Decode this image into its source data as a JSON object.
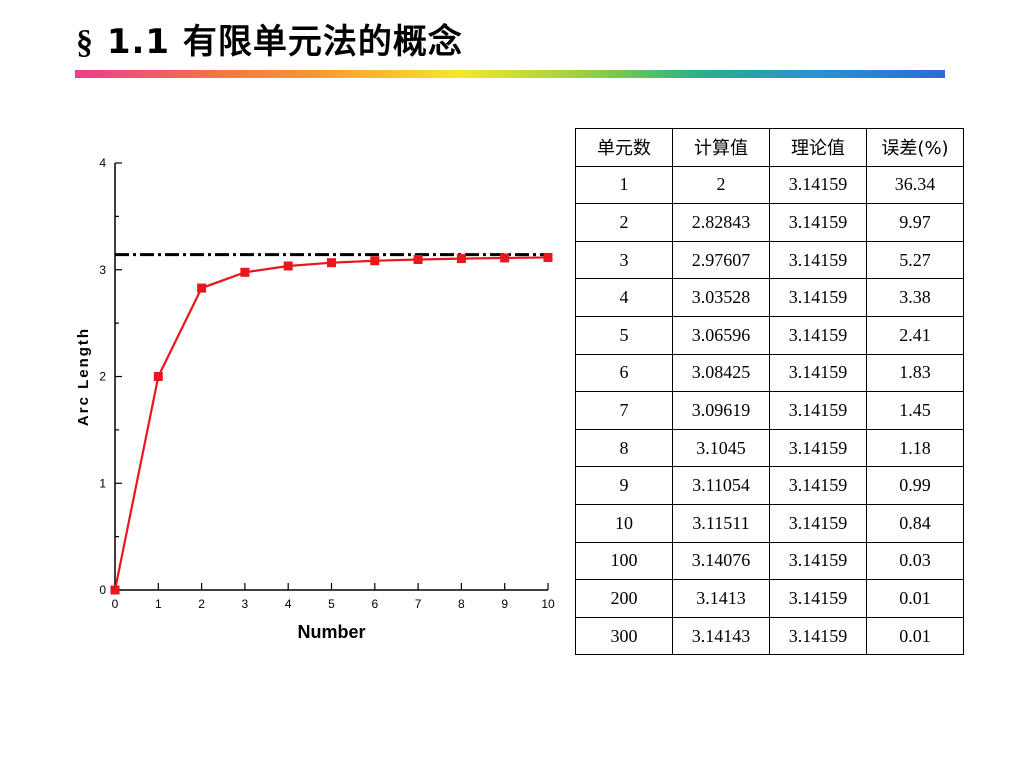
{
  "title": {
    "prefix": "§",
    "text": "1.1 有限单元法的概念"
  },
  "chart_data": {
    "type": "line",
    "xlabel": "Number",
    "ylabel": "Arc Length",
    "xlim": [
      0,
      10
    ],
    "ylim": [
      0,
      4
    ],
    "x_ticks": [
      "0",
      "1",
      "2",
      "3",
      "4",
      "5",
      "6",
      "7",
      "8",
      "9",
      "10"
    ],
    "y_ticks": [
      "0",
      "1",
      "2",
      "3",
      "4"
    ],
    "series": [
      {
        "x": [
          0,
          1,
          2,
          3,
          4,
          5,
          6,
          7,
          8,
          9,
          10
        ],
        "values": [
          0,
          2,
          2.82843,
          2.97607,
          3.03528,
          3.06596,
          3.08425,
          3.09619,
          3.1045,
          3.11054,
          3.11511
        ],
        "color": "#e8161d"
      }
    ],
    "reference_line": {
      "y": 3.14159,
      "style": "dash-dot",
      "color": "#000000"
    },
    "grid": false
  },
  "table": {
    "headers": [
      "单元数",
      "计算值",
      "理论值",
      "误差(%)"
    ],
    "rows": [
      [
        "1",
        "2",
        "3.14159",
        "36.34"
      ],
      [
        "2",
        "2.82843",
        "3.14159",
        "9.97"
      ],
      [
        "3",
        "2.97607",
        "3.14159",
        "5.27"
      ],
      [
        "4",
        "3.03528",
        "3.14159",
        "3.38"
      ],
      [
        "5",
        "3.06596",
        "3.14159",
        "2.41"
      ],
      [
        "6",
        "3.08425",
        "3.14159",
        "1.83"
      ],
      [
        "7",
        "3.09619",
        "3.14159",
        "1.45"
      ],
      [
        "8",
        "3.1045",
        "3.14159",
        "1.18"
      ],
      [
        "9",
        "3.11054",
        "3.14159",
        "0.99"
      ],
      [
        "10",
        "3.11511",
        "3.14159",
        "0.84"
      ],
      [
        "100",
        "3.14076",
        "3.14159",
        "0.03"
      ],
      [
        "200",
        "3.1413",
        "3.14159",
        "0.01"
      ],
      [
        "300",
        "3.14143",
        "3.14159",
        "0.01"
      ]
    ]
  }
}
